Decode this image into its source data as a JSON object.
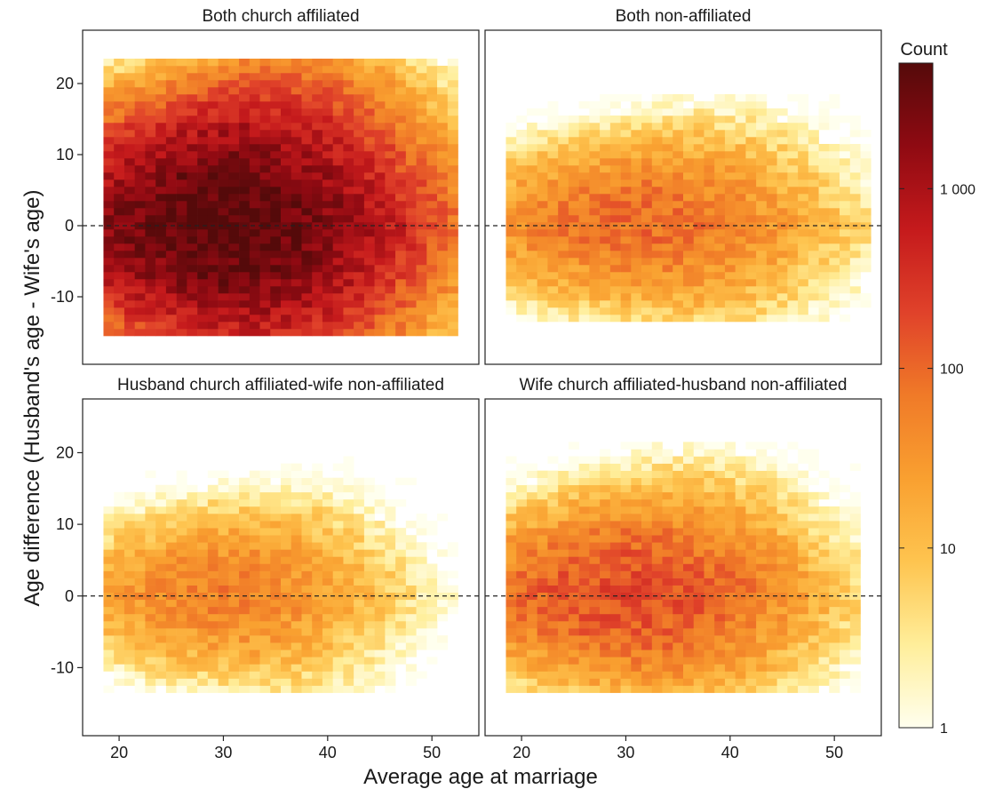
{
  "chart_data": {
    "type": "heatmap",
    "xlabel": "Average age at marriage",
    "ylabel": "Age difference (Husband's age - Wife's age)",
    "xlim": [
      16.5,
      54.5
    ],
    "ylim": [
      -19.5,
      27.5
    ],
    "x_ticks": [
      20,
      30,
      40,
      50
    ],
    "y_ticks": [
      -10,
      0,
      10,
      20
    ],
    "x_tick_labels": [
      "20",
      "30",
      "40",
      "50"
    ],
    "y_tick_labels": [
      "-10",
      "0",
      "10",
      "20"
    ],
    "bin_width_x": 1,
    "bin_width_y": 1,
    "reference_line": {
      "y": 0,
      "style": "dashed"
    },
    "colorbar": {
      "title": "Count",
      "scale": "log",
      "range": [
        1,
        5000
      ],
      "ticks": [
        1,
        10,
        100,
        1000
      ],
      "tick_labels": [
        "1",
        "10",
        "100",
        "1 000"
      ],
      "colors": [
        "#ffffee",
        "#ffee9a",
        "#fec44f",
        "#f9a030",
        "#f07a28",
        "#e0422a",
        "#c51a1c",
        "#8f0a12",
        "#550a0a"
      ]
    },
    "panels": [
      {
        "title": "Both church affiliated",
        "peak": 5000,
        "center_x": 30,
        "spread_x": 7.5,
        "spread_y": 7.0,
        "x_range": [
          19,
          52
        ],
        "y_range": [
          -15,
          23
        ]
      },
      {
        "title": "Both non-affiliated",
        "peak": 90,
        "center_x": 31,
        "spread_x": 8.5,
        "spread_y": 5.5,
        "x_range": [
          19,
          53
        ],
        "y_range": [
          -13,
          18
        ]
      },
      {
        "title": "Husband church affiliated-wife non-affiliated",
        "peak": 55,
        "center_x": 30,
        "spread_x": 7.5,
        "spread_y": 5.5,
        "x_range": [
          19,
          52
        ],
        "y_range": [
          -13,
          19
        ]
      },
      {
        "title": "Wife church affiliated-husband non-affiliated",
        "peak": 180,
        "center_x": 30,
        "spread_x": 8.0,
        "spread_y": 6.0,
        "x_range": [
          19,
          52
        ],
        "y_range": [
          -13,
          21
        ]
      }
    ]
  }
}
